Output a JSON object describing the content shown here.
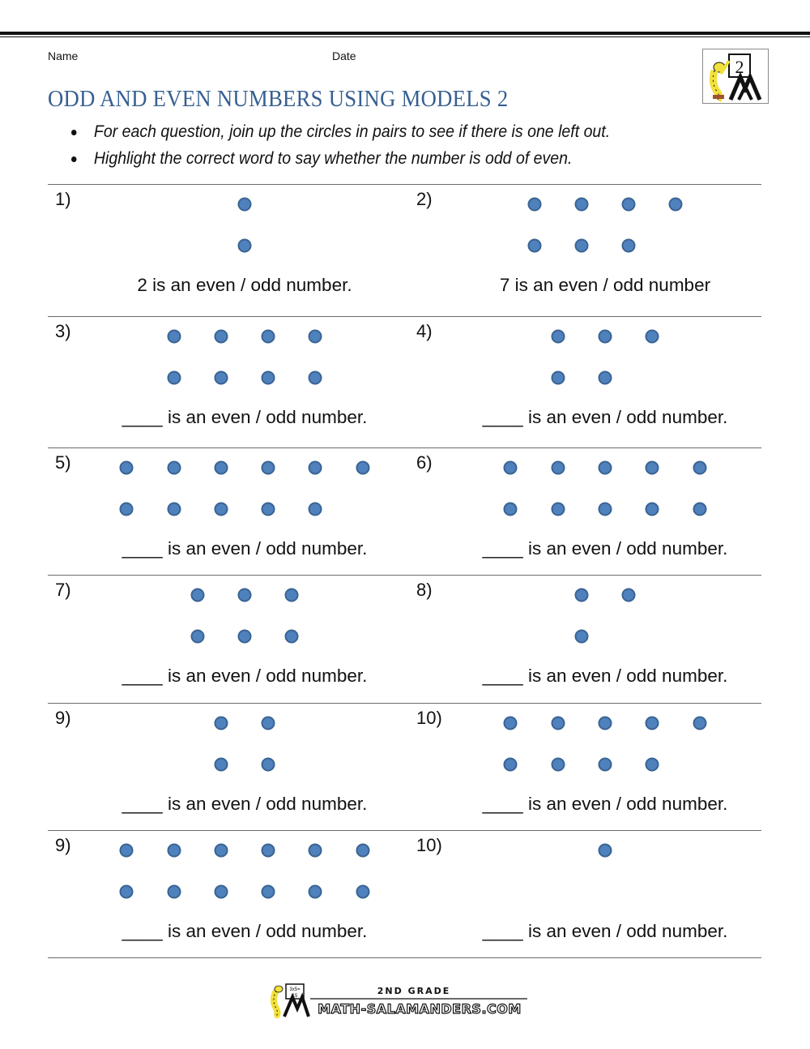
{
  "header": {
    "name_label": "Name",
    "date_label": "Date",
    "title": "ODD AND EVEN NUMBERS USING MODELS 2",
    "logo_icon": "salamander-grade-2-logo",
    "logo_grade": "2"
  },
  "instructions": [
    "For each question, join up the circles in pairs to see if there is one left out.",
    "Highlight the correct word to say whether the number is odd of even."
  ],
  "style": {
    "dot_fill": "#4f81bd",
    "dot_border": "#3a6493",
    "title_color": "#365f91"
  },
  "questions": [
    {
      "label": "1)",
      "sentence": "2 is an even / odd number.",
      "row1": 1,
      "row2": 1
    },
    {
      "label": "2)",
      "sentence": "7 is an even / odd number",
      "row1": 4,
      "row2": 3
    },
    {
      "label": "3)",
      "sentence": "____ is an even / odd number.",
      "row1": 4,
      "row2": 4
    },
    {
      "label": "4)",
      "sentence": "____ is an even / odd number.",
      "row1": 3,
      "row2": 2
    },
    {
      "label": "5)",
      "sentence": "____ is an even / odd number.",
      "row1": 6,
      "row2": 5
    },
    {
      "label": "6)",
      "sentence": "____ is an even / odd number.",
      "row1": 5,
      "row2": 5
    },
    {
      "label": "7)",
      "sentence": "____ is an even / odd number.",
      "row1": 3,
      "row2": 3
    },
    {
      "label": "8)",
      "sentence": "____ is an even / odd number.",
      "row1": 2,
      "row2": 1
    },
    {
      "label": "9)",
      "sentence": "____ is an even / odd number.",
      "row1": 2,
      "row2": 2
    },
    {
      "label": "10)",
      "sentence": "____ is an even / odd number.",
      "row1": 5,
      "row2": 4
    },
    {
      "label": "9)",
      "sentence": "____ is an even / odd number.",
      "row1": 6,
      "row2": 6
    },
    {
      "label": "10)",
      "sentence": "____ is an even / odd number.",
      "row1": 1,
      "row2": 0
    }
  ],
  "footer": {
    "logo_icon": "math-salamanders-logo",
    "grade_text": "2ND GRADE",
    "site_text": "MATH-SALAMANDERS.COM",
    "board_text_1": "3x5=",
    "board_text_2": "15"
  }
}
